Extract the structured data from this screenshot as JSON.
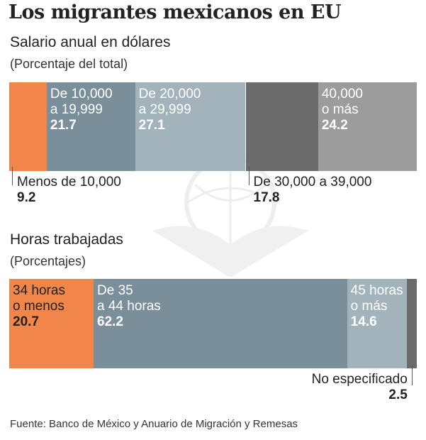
{
  "title": "Los migrantes mexicanos en EU",
  "source": "Fuente: Banco de México y Anuario de Migración y Remesas",
  "chart_data": [
    {
      "type": "bar",
      "stacked": true,
      "orientation": "horizontal",
      "title": "Salario anual en dólares",
      "subtitle": "(Porcentaje del total)",
      "categories": [
        "Menos de 10,000",
        "De 10,000 a 19,999",
        "De 20,000 a 29,999",
        "De 30,000 a 39,000",
        "40,000 o más"
      ],
      "label_lines": [
        [
          "Menos de 10,000"
        ],
        [
          "De 10,000",
          "a 19,999"
        ],
        [
          "De 20,000",
          "a 29,999"
        ],
        [
          "De 30,000 a 39,000"
        ],
        [
          "40,000",
          "o más"
        ]
      ],
      "values": [
        9.2,
        21.7,
        27.1,
        17.8,
        24.2
      ],
      "value_labels": [
        "9.2",
        "21.7",
        "27.1",
        "17.8",
        "24.2"
      ],
      "placement": [
        "below",
        "inside",
        "inside",
        "below",
        "inside"
      ],
      "colors": [
        "#f0864a",
        "#7b8f9b",
        "#a3b3bc",
        "#6b6b6b",
        "#9c9c9c"
      ]
    },
    {
      "type": "bar",
      "stacked": true,
      "orientation": "horizontal",
      "title": "Horas trabajadas",
      "subtitle": "(Porcentajes)",
      "categories": [
        "34 horas o menos",
        "De 35 a 44 horas",
        "45 horas o más",
        "No especificado"
      ],
      "label_lines": [
        [
          "34 horas",
          "o menos"
        ],
        [
          "De 35",
          "a 44 horas"
        ],
        [
          "45 horas",
          "o más"
        ],
        [
          "No especificado"
        ]
      ],
      "values": [
        20.7,
        62.2,
        14.6,
        2.5
      ],
      "value_labels": [
        "20.7",
        "62.2",
        "14.6",
        "2.5"
      ],
      "placement": [
        "inside",
        "inside",
        "inside",
        "below-right"
      ],
      "colors": [
        "#f0864a",
        "#7b8f9b",
        "#a3b3bc",
        "#6b6b6b"
      ]
    }
  ]
}
